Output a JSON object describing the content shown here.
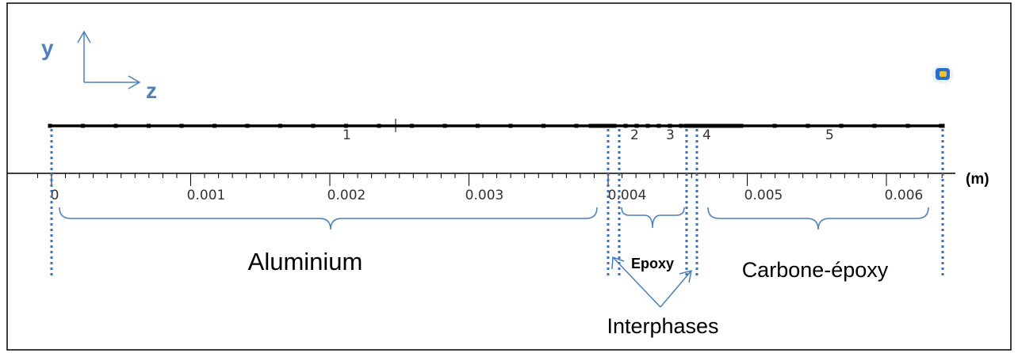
{
  "axes_indicator": {
    "y_label": "y",
    "z_label": "z"
  },
  "unit_label": "(m)",
  "ticks": [
    "0",
    "0.001",
    "0.002",
    "0.003",
    "0.004",
    "0.005",
    "0.006"
  ],
  "domain_numbers": [
    "1",
    "2",
    "3",
    "4",
    "5"
  ],
  "materials": {
    "aluminium": "Aluminium",
    "epoxy": "Epoxy",
    "carbone_epoxy": "Carbone-époxy"
  },
  "interphase_label": "Interphases",
  "colors": {
    "accent": "#4a7ebb",
    "axis_label": "#4f81bd",
    "dotted": "#3d6fb6",
    "line": "#000000"
  }
}
